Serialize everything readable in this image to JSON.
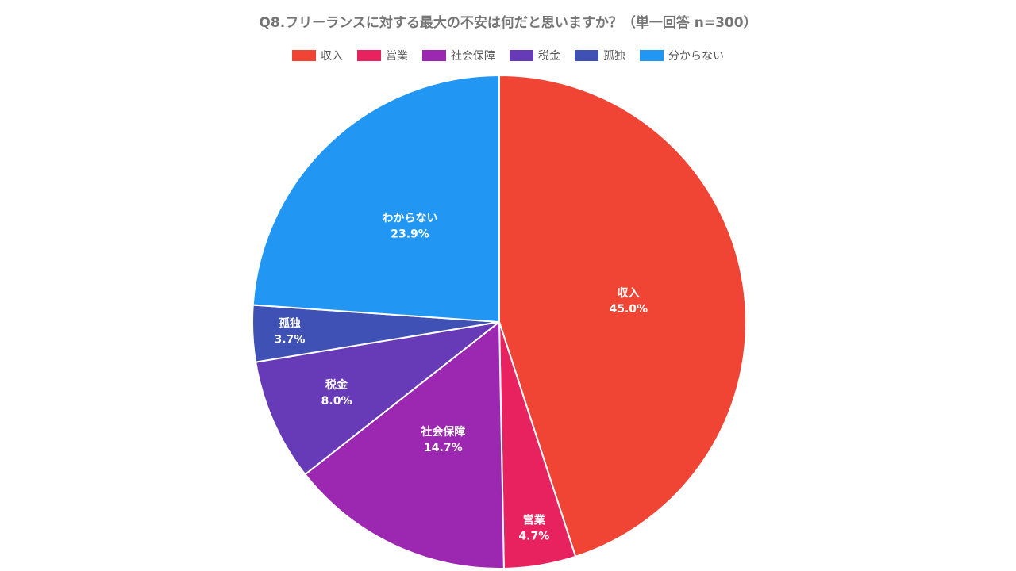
{
  "chart_data": {
    "type": "pie",
    "title": "Q8.フリーランスに対する最大の不安は何だと思いますか？（単一回答 n=300）",
    "categories": [
      "収入",
      "営業",
      "社会保障",
      "税金",
      "孤独",
      "分からない"
    ],
    "slice_labels": [
      "収入",
      "営業",
      "社会保障",
      "税金",
      "孤独",
      "わからない"
    ],
    "values": [
      45.0,
      4.7,
      14.7,
      8.0,
      3.7,
      23.9
    ],
    "value_labels": [
      "45.0%",
      "4.7%",
      "14.7%",
      "8.0%",
      "3.7%",
      "23.9%"
    ],
    "colors": [
      "#f04434",
      "#e8225f",
      "#9c27b0",
      "#673ab7",
      "#3f51b5",
      "#2196f3"
    ],
    "legend": "top"
  }
}
